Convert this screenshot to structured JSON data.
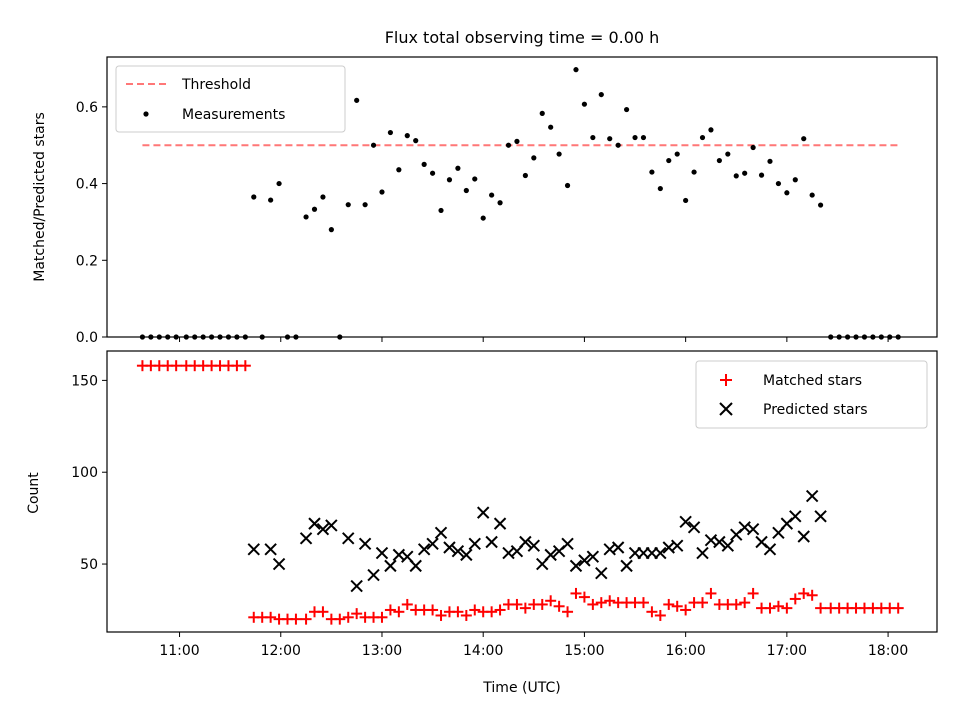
{
  "chart_data": [
    {
      "type": "scatter",
      "title": "Flux total observing time = 0.00 h",
      "xlabel": "",
      "ylabel": "Matched/Predicted stars",
      "xlim": [
        "10:17",
        "18:29"
      ],
      "ylim": [
        0,
        0.73
      ],
      "yticks": [
        0.0,
        0.2,
        0.4,
        0.6
      ],
      "ytick_labels": [
        "0.0",
        "0.2",
        "0.4",
        "0.6"
      ],
      "xticks": [
        "11:00",
        "12:00",
        "13:00",
        "14:00",
        "15:00",
        "16:00",
        "17:00",
        "18:00"
      ],
      "grid": false,
      "legend": {
        "placement": "top-left",
        "entries": [
          "Threshold",
          "Measurements"
        ]
      },
      "threshold": {
        "name": "Threshold",
        "value": 0.5,
        "x_start": "10:38",
        "x_end": "18:06",
        "color": "#ff7777",
        "style": "dashed"
      },
      "series": [
        {
          "name": "Measurements",
          "color": "#000000",
          "marker": "dot",
          "points": [
            [
              "10:38",
              0
            ],
            [
              "10:43",
              0
            ],
            [
              "10:48",
              0
            ],
            [
              "10:53",
              0
            ],
            [
              "10:58",
              0
            ],
            [
              "11:04",
              0
            ],
            [
              "11:09",
              0
            ],
            [
              "11:14",
              0
            ],
            [
              "11:19",
              0
            ],
            [
              "11:24",
              0
            ],
            [
              "11:29",
              0
            ],
            [
              "11:34",
              0
            ],
            [
              "11:39",
              0
            ],
            [
              "11:44",
              0.365
            ],
            [
              "11:49",
              0
            ],
            [
              "11:54",
              0.357
            ],
            [
              "11:59",
              0.4
            ],
            [
              "12:04",
              0
            ],
            [
              "12:09",
              0
            ],
            [
              "12:15",
              0.313
            ],
            [
              "12:20",
              0.333
            ],
            [
              "12:25",
              0.365
            ],
            [
              "12:30",
              0.28
            ],
            [
              "12:35",
              0
            ],
            [
              "12:40",
              0.345
            ],
            [
              "12:45",
              0.617
            ],
            [
              "12:50",
              0.345
            ],
            [
              "12:55",
              0.5
            ],
            [
              "13:00",
              0.378
            ],
            [
              "13:05",
              0.533
            ],
            [
              "13:10",
              0.436
            ],
            [
              "13:15",
              0.525
            ],
            [
              "13:20",
              0.512
            ],
            [
              "13:25",
              0.45
            ],
            [
              "13:30",
              0.427
            ],
            [
              "13:35",
              0.33
            ],
            [
              "13:40",
              0.41
            ],
            [
              "13:45",
              0.44
            ],
            [
              "13:50",
              0.382
            ],
            [
              "13:55",
              0.412
            ],
            [
              "14:00",
              0.31
            ],
            [
              "14:05",
              0.37
            ],
            [
              "14:10",
              0.35
            ],
            [
              "14:15",
              0.5
            ],
            [
              "14:20",
              0.51
            ],
            [
              "14:25",
              0.421
            ],
            [
              "14:30",
              0.467
            ],
            [
              "14:35",
              0.583
            ],
            [
              "14:40",
              0.547
            ],
            [
              "14:45",
              0.477
            ],
            [
              "14:50",
              0.395
            ],
            [
              "14:55",
              0.697
            ],
            [
              "15:00",
              0.607
            ],
            [
              "15:05",
              0.52
            ],
            [
              "15:10",
              0.632
            ],
            [
              "15:15",
              0.517
            ],
            [
              "15:20",
              0.5
            ],
            [
              "15:25",
              0.593
            ],
            [
              "15:30",
              0.52
            ],
            [
              "15:35",
              0.52
            ],
            [
              "15:40",
              0.43
            ],
            [
              "15:45",
              0.387
            ],
            [
              "15:50",
              0.46
            ],
            [
              "15:55",
              0.477
            ],
            [
              "16:00",
              0.356
            ],
            [
              "16:05",
              0.43
            ],
            [
              "16:10",
              0.52
            ],
            [
              "16:15",
              0.54
            ],
            [
              "16:20",
              0.46
            ],
            [
              "16:25",
              0.477
            ],
            [
              "16:30",
              0.42
            ],
            [
              "16:35",
              0.427
            ],
            [
              "16:40",
              0.494
            ],
            [
              "16:45",
              0.422
            ],
            [
              "16:50",
              0.458
            ],
            [
              "16:55",
              0.4
            ],
            [
              "17:00",
              0.376
            ],
            [
              "17:05",
              0.41
            ],
            [
              "17:10",
              0.517
            ],
            [
              "17:15",
              0.37
            ],
            [
              "17:20",
              0.344
            ],
            [
              "17:26",
              0
            ],
            [
              "17:31",
              0
            ],
            [
              "17:36",
              0
            ],
            [
              "17:41",
              0
            ],
            [
              "17:46",
              0
            ],
            [
              "17:51",
              0
            ],
            [
              "17:56",
              0
            ],
            [
              "18:01",
              0
            ],
            [
              "18:06",
              0
            ]
          ]
        }
      ]
    },
    {
      "type": "scatter",
      "title": "",
      "xlabel": "Time (UTC)",
      "ylabel": "Count",
      "xlim": [
        "10:17",
        "18:29"
      ],
      "ylim": [
        13,
        166
      ],
      "yticks": [
        50,
        100,
        150
      ],
      "ytick_labels": [
        "50",
        "100",
        "150"
      ],
      "xticks": [
        "11:00",
        "12:00",
        "13:00",
        "14:00",
        "15:00",
        "16:00",
        "17:00",
        "18:00"
      ],
      "grid": false,
      "legend": {
        "placement": "top-right",
        "entries": [
          "Matched stars",
          "Predicted stars"
        ]
      },
      "series": [
        {
          "name": "Matched stars",
          "color": "#ff0000",
          "marker": "plus",
          "points": [
            [
              "10:38",
              158
            ],
            [
              "10:43",
              158
            ],
            [
              "10:48",
              158
            ],
            [
              "10:53",
              158
            ],
            [
              "10:58",
              158
            ],
            [
              "11:04",
              158
            ],
            [
              "11:09",
              158
            ],
            [
              "11:14",
              158
            ],
            [
              "11:19",
              158
            ],
            [
              "11:24",
              158
            ],
            [
              "11:29",
              158
            ],
            [
              "11:34",
              158
            ],
            [
              "11:39",
              158
            ],
            [
              "11:44",
              21
            ],
            [
              "11:49",
              21
            ],
            [
              "11:54",
              21
            ],
            [
              "11:59",
              20
            ],
            [
              "12:04",
              20
            ],
            [
              "12:09",
              20
            ],
            [
              "12:15",
              20
            ],
            [
              "12:20",
              24
            ],
            [
              "12:25",
              24
            ],
            [
              "12:30",
              20
            ],
            [
              "12:35",
              20
            ],
            [
              "12:40",
              21
            ],
            [
              "12:45",
              23
            ],
            [
              "12:50",
              21
            ],
            [
              "12:55",
              21
            ],
            [
              "13:00",
              21
            ],
            [
              "13:05",
              25
            ],
            [
              "13:10",
              24
            ],
            [
              "13:15",
              28
            ],
            [
              "13:20",
              25
            ],
            [
              "13:25",
              25
            ],
            [
              "13:30",
              25
            ],
            [
              "13:35",
              22
            ],
            [
              "13:40",
              24
            ],
            [
              "13:45",
              24
            ],
            [
              "13:50",
              22
            ],
            [
              "13:55",
              25
            ],
            [
              "14:00",
              24
            ],
            [
              "14:05",
              24
            ],
            [
              "14:10",
              25
            ],
            [
              "14:15",
              28
            ],
            [
              "14:20",
              28
            ],
            [
              "14:25",
              26
            ],
            [
              "14:30",
              28
            ],
            [
              "14:35",
              28
            ],
            [
              "14:40",
              30
            ],
            [
              "14:45",
              27
            ],
            [
              "14:50",
              24
            ],
            [
              "14:55",
              34
            ],
            [
              "15:00",
              32
            ],
            [
              "15:05",
              28
            ],
            [
              "15:10",
              29
            ],
            [
              "15:15",
              30
            ],
            [
              "15:20",
              29
            ],
            [
              "15:25",
              29
            ],
            [
              "15:30",
              29
            ],
            [
              "15:35",
              29
            ],
            [
              "15:40",
              24
            ],
            [
              "15:45",
              22
            ],
            [
              "15:50",
              28
            ],
            [
              "15:55",
              27
            ],
            [
              "16:00",
              25
            ],
            [
              "16:05",
              29
            ],
            [
              "16:10",
              29
            ],
            [
              "16:15",
              34
            ],
            [
              "16:20",
              28
            ],
            [
              "16:25",
              28
            ],
            [
              "16:30",
              28
            ],
            [
              "16:35",
              29
            ],
            [
              "16:40",
              34
            ],
            [
              "16:45",
              26
            ],
            [
              "16:50",
              26
            ],
            [
              "16:55",
              27
            ],
            [
              "17:00",
              26
            ],
            [
              "17:05",
              31
            ],
            [
              "17:10",
              34
            ],
            [
              "17:15",
              33
            ],
            [
              "17:20",
              26
            ],
            [
              "17:26",
              26
            ],
            [
              "17:31",
              26
            ],
            [
              "17:36",
              26
            ],
            [
              "17:41",
              26
            ],
            [
              "17:46",
              26
            ],
            [
              "17:51",
              26
            ],
            [
              "17:56",
              26
            ],
            [
              "18:01",
              26
            ],
            [
              "18:06",
              26
            ]
          ]
        },
        {
          "name": "Predicted stars",
          "color": "#000000",
          "marker": "x",
          "points": [
            [
              "11:44",
              58
            ],
            [
              "11:54",
              58
            ],
            [
              "11:59",
              50
            ],
            [
              "12:15",
              64
            ],
            [
              "12:20",
              72
            ],
            [
              "12:25",
              69
            ],
            [
              "12:30",
              71
            ],
            [
              "12:40",
              64
            ],
            [
              "12:45",
              38
            ],
            [
              "12:50",
              61
            ],
            [
              "12:55",
              44
            ],
            [
              "13:00",
              56
            ],
            [
              "13:05",
              49
            ],
            [
              "13:10",
              55
            ],
            [
              "13:15",
              54
            ],
            [
              "13:20",
              49
            ],
            [
              "13:25",
              58
            ],
            [
              "13:30",
              61
            ],
            [
              "13:35",
              67
            ],
            [
              "13:40",
              59
            ],
            [
              "13:45",
              57
            ],
            [
              "13:50",
              55
            ],
            [
              "13:55",
              61
            ],
            [
              "14:00",
              78
            ],
            [
              "14:05",
              62
            ],
            [
              "14:10",
              72
            ],
            [
              "14:15",
              56
            ],
            [
              "14:20",
              57
            ],
            [
              "14:25",
              62
            ],
            [
              "14:30",
              60
            ],
            [
              "14:35",
              50
            ],
            [
              "14:40",
              55
            ],
            [
              "14:45",
              57
            ],
            [
              "14:50",
              61
            ],
            [
              "14:55",
              49
            ],
            [
              "15:00",
              52
            ],
            [
              "15:05",
              54
            ],
            [
              "15:10",
              45
            ],
            [
              "15:15",
              58
            ],
            [
              "15:20",
              59
            ],
            [
              "15:25",
              49
            ],
            [
              "15:30",
              56
            ],
            [
              "15:35",
              56
            ],
            [
              "15:40",
              56
            ],
            [
              "15:45",
              56
            ],
            [
              "15:50",
              59
            ],
            [
              "15:55",
              60
            ],
            [
              "16:00",
              73
            ],
            [
              "16:05",
              70
            ],
            [
              "16:10",
              56
            ],
            [
              "16:15",
              63
            ],
            [
              "16:20",
              62
            ],
            [
              "16:25",
              60
            ],
            [
              "16:30",
              66
            ],
            [
              "16:35",
              70
            ],
            [
              "16:40",
              69
            ],
            [
              "16:45",
              62
            ],
            [
              "16:50",
              58
            ],
            [
              "16:55",
              67
            ],
            [
              "17:00",
              72
            ],
            [
              "17:05",
              76
            ],
            [
              "17:10",
              65
            ],
            [
              "17:15",
              87
            ],
            [
              "17:20",
              76
            ]
          ]
        }
      ]
    }
  ]
}
